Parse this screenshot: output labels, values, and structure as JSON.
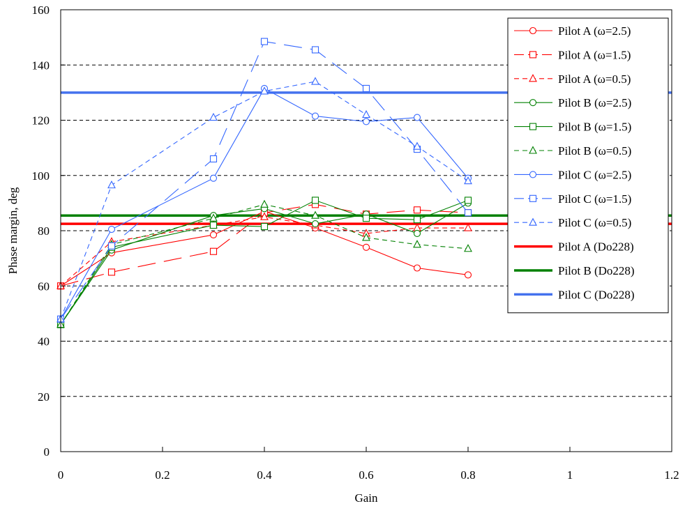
{
  "chart_data": {
    "type": "line",
    "title": "",
    "xlabel": "Gain",
    "ylabel": "Phase margin, deg",
    "xlim": [
      0,
      1.2
    ],
    "ylim": [
      0,
      160
    ],
    "xticks": [
      0,
      0.2,
      0.4,
      0.6,
      0.8,
      1,
      1.2
    ],
    "yticks": [
      0,
      20,
      40,
      60,
      80,
      100,
      120,
      140,
      160
    ],
    "x_tick_labels": [
      "0",
      "0.2",
      "0.4",
      "0.6",
      "0.8",
      "1",
      "1.2"
    ],
    "y_tick_labels": [
      "0",
      "20",
      "40",
      "60",
      "80",
      "100",
      "120",
      "140",
      "160"
    ],
    "grid": "horizontal dashed",
    "legend_position": "top-right",
    "colors": {
      "red": "#ff0000",
      "green": "#008000",
      "blue": "#3366ff",
      "thick_blue": "#4472ee",
      "grid": "#000000"
    },
    "series": [
      {
        "name": "Pilot A (ω=2.5)",
        "color": "#ff0000",
        "marker": "circle",
        "dash": "solid",
        "x": [
          0,
          0.1,
          0.3,
          0.4,
          0.5,
          0.6,
          0.7,
          0.8
        ],
        "y": [
          60,
          72,
          78.5,
          87,
          81,
          74,
          66.5,
          64
        ]
      },
      {
        "name": "Pilot A (ω=1.5)",
        "color": "#ff0000",
        "marker": "square",
        "dash": "longdash",
        "x": [
          0,
          0.1,
          0.3,
          0.4,
          0.5,
          0.6,
          0.7,
          0.8
        ],
        "y": [
          60,
          65,
          72.5,
          86.5,
          89.5,
          86,
          87.5,
          86.5
        ]
      },
      {
        "name": "Pilot A (ω=0.5)",
        "color": "#ff0000",
        "marker": "triangle",
        "dash": "shortdash",
        "x": [
          0,
          0.1,
          0.3,
          0.4,
          0.5,
          0.6,
          0.7,
          0.8
        ],
        "y": [
          60,
          76,
          82,
          85,
          82,
          79,
          81,
          81
        ]
      },
      {
        "name": "Pilot B (ω=2.5)",
        "color": "#008000",
        "marker": "circle",
        "dash": "solid",
        "x": [
          0,
          0.1,
          0.3,
          0.4,
          0.5,
          0.6,
          0.7,
          0.8
        ],
        "y": [
          46,
          73,
          85.5,
          88,
          82.5,
          86,
          79,
          90
        ]
      },
      {
        "name": "Pilot B (ω=1.5)",
        "color": "#008000",
        "marker": "square",
        "dash": "solid",
        "x": [
          0,
          0.1,
          0.3,
          0.4,
          0.5,
          0.6,
          0.7,
          0.8
        ],
        "y": [
          46,
          74,
          82,
          81.5,
          91,
          84.5,
          84,
          91
        ]
      },
      {
        "name": "Pilot B (ω=0.5)",
        "color": "#008000",
        "marker": "triangle",
        "dash": "shortdash",
        "x": [
          0,
          0.1,
          0.3,
          0.4,
          0.5,
          0.6,
          0.7,
          0.8
        ],
        "y": [
          46,
          75,
          84.5,
          89.5,
          85.5,
          77.5,
          75,
          73.5
        ]
      },
      {
        "name": "Pilot C (ω=2.5)",
        "color": "#3366ff",
        "marker": "circle",
        "dash": "solid",
        "x": [
          0,
          0.1,
          0.3,
          0.4,
          0.5,
          0.6,
          0.7,
          0.8
        ],
        "y": [
          48,
          80.5,
          99,
          131.5,
          121.5,
          119.5,
          121,
          99
        ]
      },
      {
        "name": "Pilot C (ω=1.5)",
        "color": "#3366ff",
        "marker": "square",
        "dash": "longdash",
        "x": [
          0,
          0.1,
          0.3,
          0.4,
          0.5,
          0.6,
          0.7,
          0.8
        ],
        "y": [
          48,
          74.5,
          106,
          148.5,
          145.5,
          131.5,
          109.5,
          86.5
        ]
      },
      {
        "name": "Pilot C (ω=0.5)",
        "color": "#3366ff",
        "marker": "triangle",
        "dash": "shortdash",
        "x": [
          0,
          0.1,
          0.3,
          0.4,
          0.5,
          0.6,
          0.7,
          0.8
        ],
        "y": [
          48,
          96.5,
          121,
          130.5,
          134,
          122,
          110.5,
          98
        ]
      },
      {
        "name": "Pilot A (Do228)",
        "color": "#ff0000",
        "marker": "none",
        "dash": "solid",
        "thick": true,
        "x": [
          0,
          1.2
        ],
        "y": [
          82.5,
          82.5
        ]
      },
      {
        "name": "Pilot B (Do228)",
        "color": "#008000",
        "marker": "none",
        "dash": "solid",
        "thick": true,
        "x": [
          0,
          1.2
        ],
        "y": [
          85.5,
          85.5
        ]
      },
      {
        "name": "Pilot C (Do228)",
        "color": "#4472ee",
        "marker": "none",
        "dash": "solid",
        "thick": true,
        "x": [
          0,
          1.2
        ],
        "y": [
          130,
          130
        ]
      }
    ]
  }
}
